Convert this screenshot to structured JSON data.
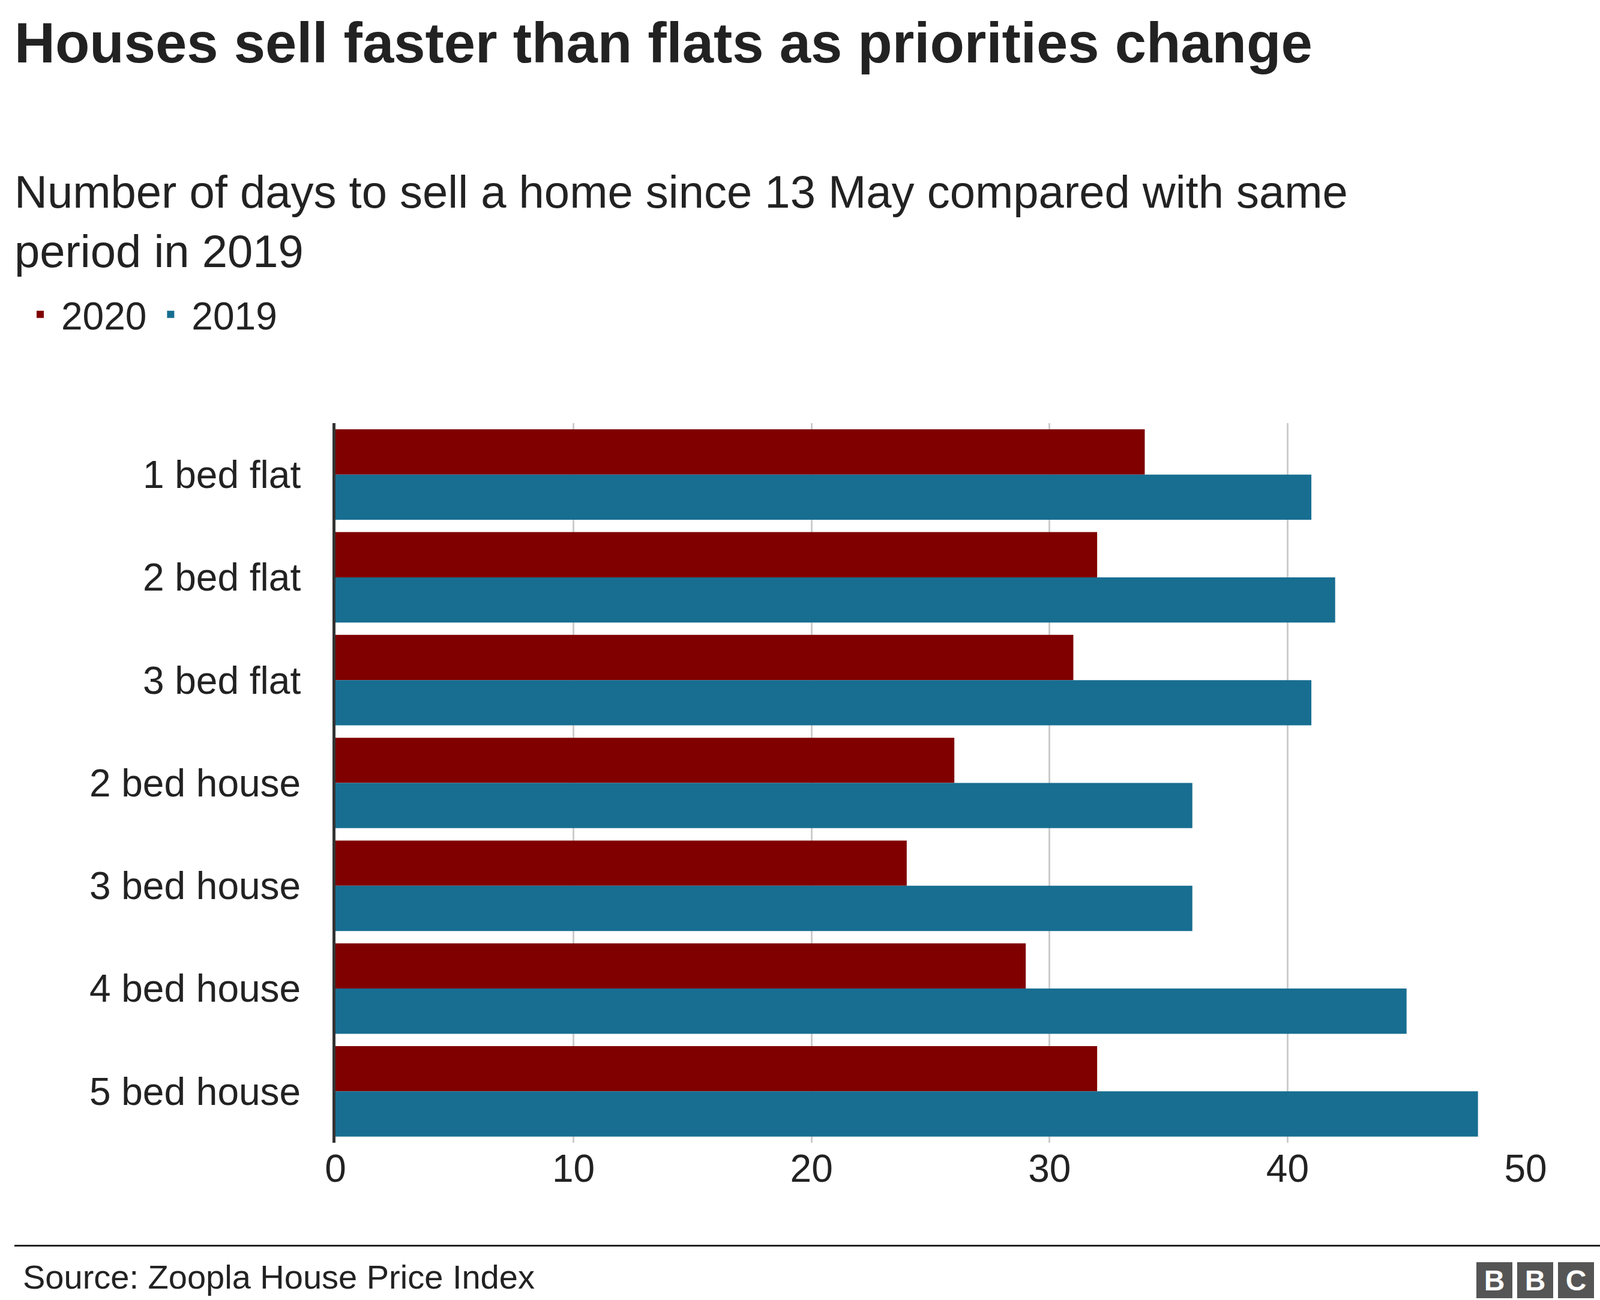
{
  "chart_data": {
    "type": "bar",
    "orientation": "horizontal",
    "title": "Houses sell faster than flats as priorities change",
    "subtitle": "Number of days to sell a home since 13 May compared with same period in 2019",
    "source": "Source: Zoopla House Price Index",
    "logo": "BBC",
    "categories": [
      "1 bed flat",
      "2 bed flat",
      "3 bed flat",
      "2 bed house",
      "3 bed house",
      "4 bed house",
      "5 bed house"
    ],
    "series": [
      {
        "name": "2020",
        "color": "#800000",
        "values": [
          34,
          32,
          31,
          26,
          24,
          29,
          32
        ]
      },
      {
        "name": "2019",
        "color": "#176e91",
        "values": [
          41,
          42,
          41,
          36,
          36,
          45,
          48
        ]
      }
    ],
    "xlim": [
      0,
      50
    ],
    "xticks": [
      0,
      10,
      20,
      30,
      40,
      50
    ],
    "grid": true,
    "legend": "top-left"
  }
}
